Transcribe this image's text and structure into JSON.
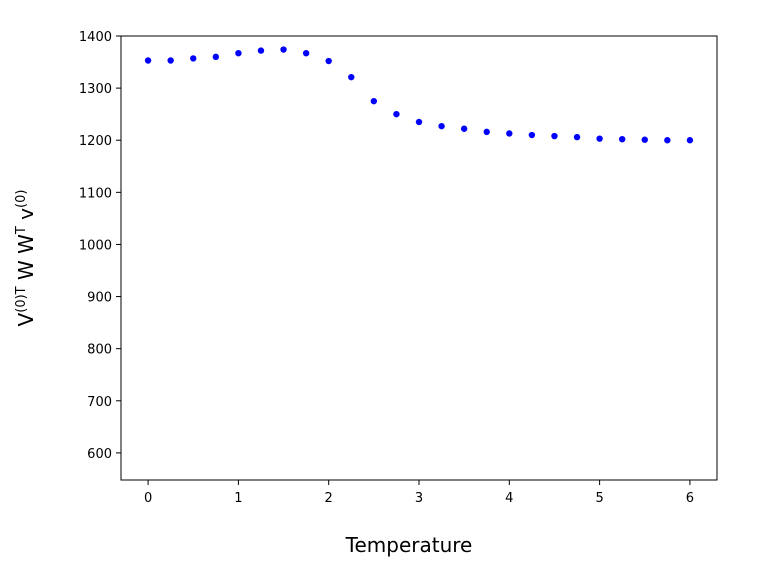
{
  "chart_data": {
    "type": "scatter",
    "title": "",
    "xlabel": "Temperature",
    "ylabel": {
      "parts": [
        "V",
        "(0)T",
        " W W",
        "T",
        " v",
        "(0)"
      ]
    },
    "xlim": [
      -0.3,
      6.3
    ],
    "ylim": [
      548,
      1400
    ],
    "xticks": [
      0,
      1,
      2,
      3,
      4,
      5,
      6
    ],
    "yticks": [
      600,
      700,
      800,
      900,
      1000,
      1100,
      1200,
      1300,
      1400
    ],
    "grid": false,
    "legend": "none",
    "marker_color": "#0000ff",
    "series": [
      {
        "x": [
          0,
          0.25,
          0.5,
          0.75,
          1,
          1.25,
          1.5,
          1.75,
          2,
          2.25,
          2.5,
          2.75,
          3,
          3.25,
          3.5,
          3.75,
          4,
          4.25,
          4.5,
          4.75,
          5,
          5.25,
          5.5,
          5.75,
          6
        ],
        "y": [
          1353,
          1353,
          1357,
          1360,
          1367,
          1372,
          1374,
          1367,
          1352,
          1321,
          1275,
          1250,
          1235,
          1227,
          1222,
          1216,
          1213,
          1210,
          1208,
          1206,
          1203,
          1202,
          1201,
          1200,
          1200
        ]
      }
    ]
  }
}
